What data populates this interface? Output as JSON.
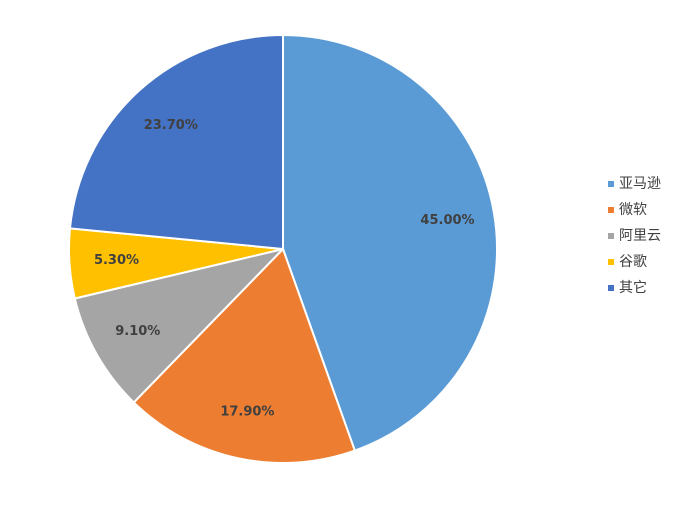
{
  "chart_data": {
    "type": "pie",
    "start_angle_deg": 0,
    "direction": "clockwise",
    "legend_position": "right",
    "slices": [
      {
        "name": "亚马逊",
        "value": 45.0,
        "label": "45.00%",
        "color": "#5B9BD5"
      },
      {
        "name": "微软",
        "value": 17.9,
        "label": "17.90%",
        "color": "#ED7D31"
      },
      {
        "name": "阿里云",
        "value": 9.1,
        "label": "9.10%",
        "color": "#A5A5A5"
      },
      {
        "name": "谷歌",
        "value": 5.3,
        "label": "5.30%",
        "color": "#FFC000"
      },
      {
        "name": "其它",
        "value": 23.7,
        "label": "23.70%",
        "color": "#4472C4"
      }
    ]
  }
}
